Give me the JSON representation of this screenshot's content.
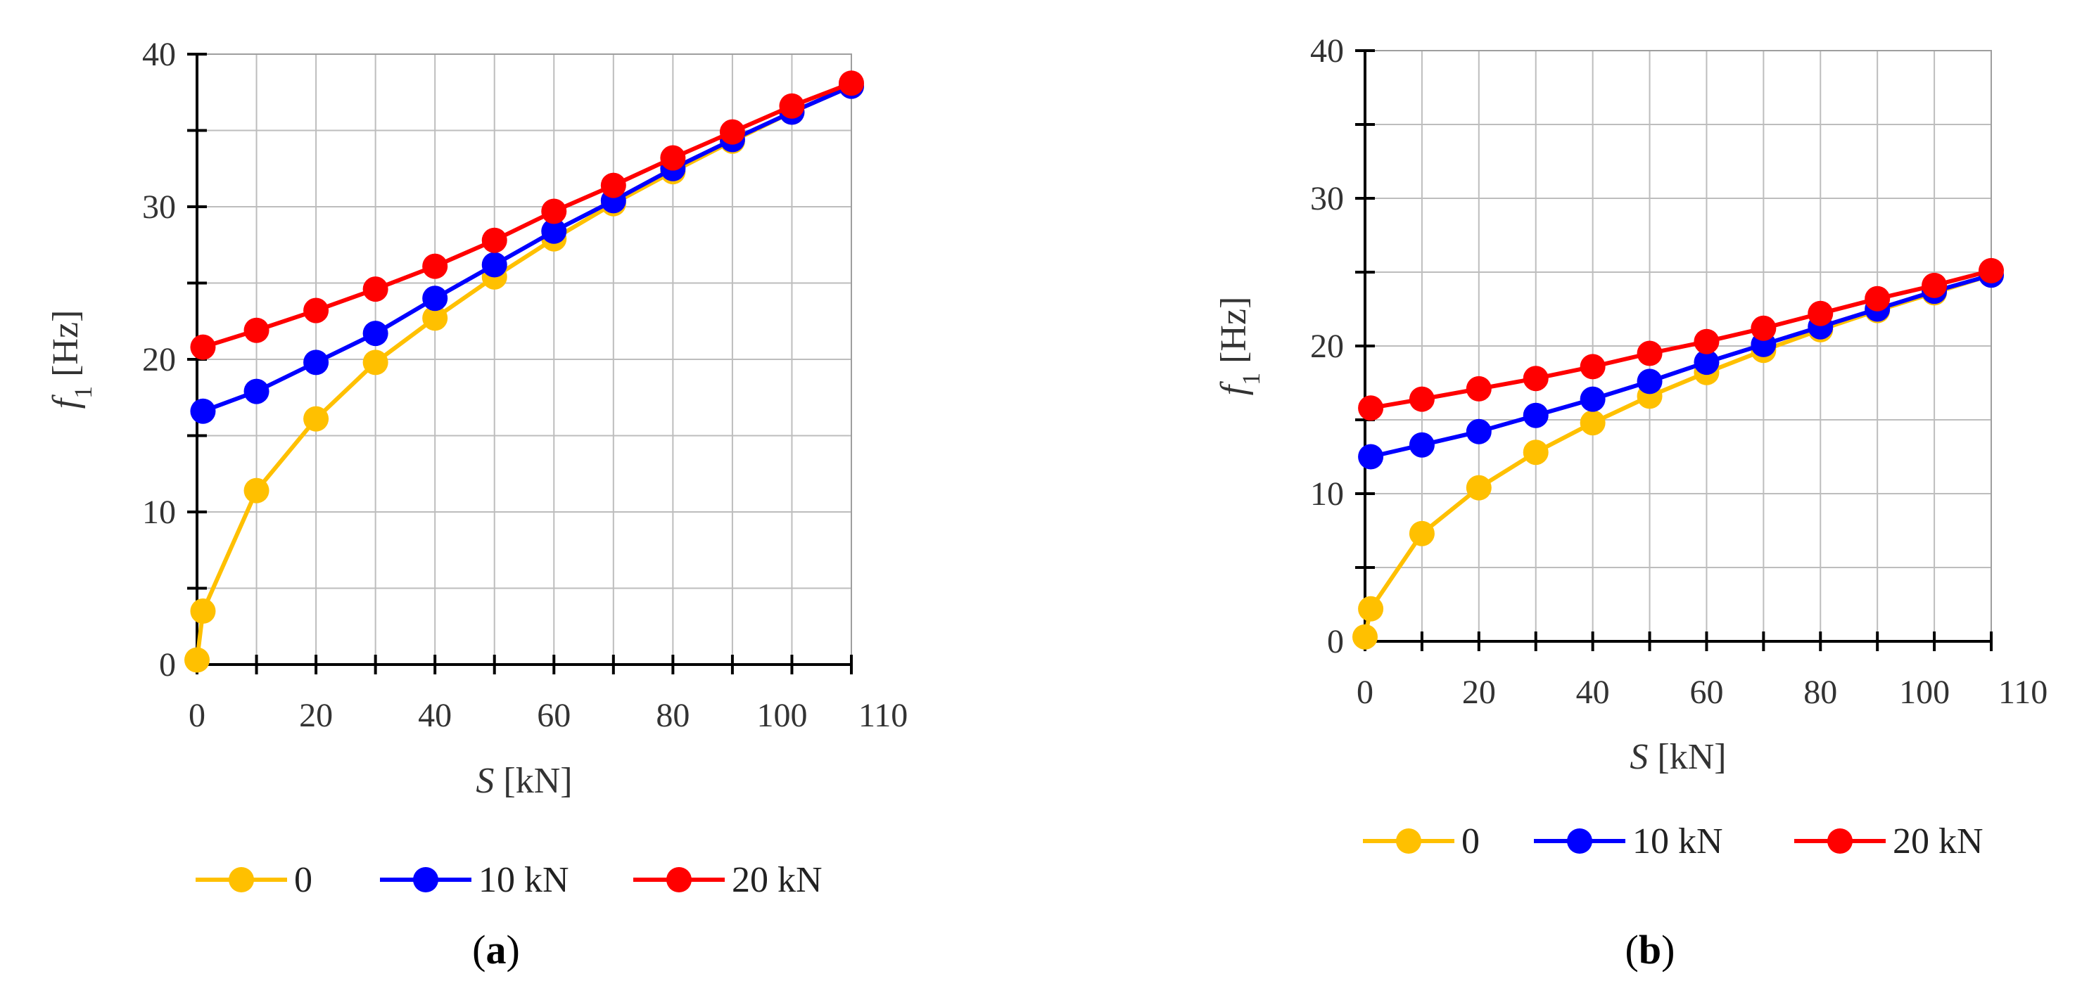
{
  "chart_data": [
    {
      "type": "line",
      "panel_label": "a",
      "xlabel_var": "S",
      "xlabel_unit": " [kN]",
      "ylabel_var": "f",
      "ylabel_sub": "1",
      "ylabel_unit": " [Hz]",
      "xlim": [
        0,
        110
      ],
      "ylim": [
        0,
        40
      ],
      "xticks": [
        "0",
        "20",
        "40",
        "60",
        "80",
        "100",
        "110"
      ],
      "xtick_values": [
        0,
        20,
        40,
        60,
        80,
        100,
        110
      ],
      "yticks": [
        "0",
        "10",
        "20",
        "30",
        "40"
      ],
      "ytick_values": [
        0,
        10,
        20,
        30,
        40
      ],
      "legend": [
        "0",
        "10 kN",
        "20 kN"
      ],
      "legend_position": "bottom",
      "grid": true,
      "series": [
        {
          "name": "0",
          "color": "#FFC000",
          "points": [
            [
              0,
              0.3
            ],
            [
              1,
              3.5
            ],
            [
              10,
              11.4
            ],
            [
              20,
              16.1
            ],
            [
              30,
              19.8
            ],
            [
              40,
              22.7
            ],
            [
              50,
              25.4
            ],
            [
              60,
              27.9
            ],
            [
              70,
              30.2
            ],
            [
              80,
              32.3
            ],
            [
              90,
              34.3
            ],
            [
              100,
              36.2
            ],
            [
              110,
              37.9
            ]
          ]
        },
        {
          "name": "10 kN",
          "color": "#0000FF",
          "points": [
            [
              1,
              16.6
            ],
            [
              10,
              17.9
            ],
            [
              20,
              19.8
            ],
            [
              30,
              21.7
            ],
            [
              40,
              24.0
            ],
            [
              50,
              26.2
            ],
            [
              60,
              28.4
            ],
            [
              70,
              30.4
            ],
            [
              80,
              32.5
            ],
            [
              90,
              34.4
            ],
            [
              100,
              36.2
            ],
            [
              110,
              37.9
            ]
          ]
        },
        {
          "name": "20 kN",
          "color": "#FF0000",
          "points": [
            [
              1,
              20.8
            ],
            [
              10,
              21.9
            ],
            [
              20,
              23.2
            ],
            [
              30,
              24.6
            ],
            [
              40,
              26.1
            ],
            [
              50,
              27.8
            ],
            [
              60,
              29.7
            ],
            [
              70,
              31.4
            ],
            [
              80,
              33.2
            ],
            [
              90,
              34.9
            ],
            [
              100,
              36.6
            ],
            [
              110,
              38.1
            ]
          ]
        }
      ]
    },
    {
      "type": "line",
      "panel_label": "b",
      "xlabel_var": "S",
      "xlabel_unit": " [kN]",
      "ylabel_var": "f",
      "ylabel_sub": "1",
      "ylabel_unit": " [Hz]",
      "xlim": [
        0,
        110
      ],
      "ylim": [
        0,
        40
      ],
      "xticks": [
        "0",
        "20",
        "40",
        "60",
        "80",
        "100",
        "110"
      ],
      "xtick_values": [
        0,
        20,
        40,
        60,
        80,
        100,
        110
      ],
      "yticks": [
        "0",
        "10",
        "20",
        "30",
        "40"
      ],
      "ytick_values": [
        0,
        10,
        20,
        30,
        40
      ],
      "legend": [
        "0",
        "10 kN",
        "20 kN"
      ],
      "legend_position": "bottom",
      "grid": true,
      "series": [
        {
          "name": "0",
          "color": "#FFC000",
          "points": [
            [
              0,
              0.3
            ],
            [
              1,
              2.2
            ],
            [
              10,
              7.3
            ],
            [
              20,
              10.4
            ],
            [
              30,
              12.8
            ],
            [
              40,
              14.8
            ],
            [
              50,
              16.6
            ],
            [
              60,
              18.2
            ],
            [
              70,
              19.7
            ],
            [
              80,
              21.1
            ],
            [
              90,
              22.4
            ],
            [
              100,
              23.6
            ],
            [
              110,
              24.8
            ]
          ]
        },
        {
          "name": "10 kN",
          "color": "#0000FF",
          "points": [
            [
              1,
              12.5
            ],
            [
              10,
              13.3
            ],
            [
              20,
              14.2
            ],
            [
              30,
              15.3
            ],
            [
              40,
              16.4
            ],
            [
              50,
              17.6
            ],
            [
              60,
              18.9
            ],
            [
              70,
              20.1
            ],
            [
              80,
              21.3
            ],
            [
              90,
              22.5
            ],
            [
              100,
              23.7
            ],
            [
              110,
              24.8
            ]
          ]
        },
        {
          "name": "20 kN",
          "color": "#FF0000",
          "points": [
            [
              1,
              15.8
            ],
            [
              10,
              16.4
            ],
            [
              20,
              17.1
            ],
            [
              30,
              17.8
            ],
            [
              40,
              18.6
            ],
            [
              50,
              19.5
            ],
            [
              60,
              20.3
            ],
            [
              70,
              21.2
            ],
            [
              80,
              22.2
            ],
            [
              90,
              23.2
            ],
            [
              100,
              24.1
            ],
            [
              110,
              25.1
            ]
          ]
        }
      ]
    }
  ]
}
